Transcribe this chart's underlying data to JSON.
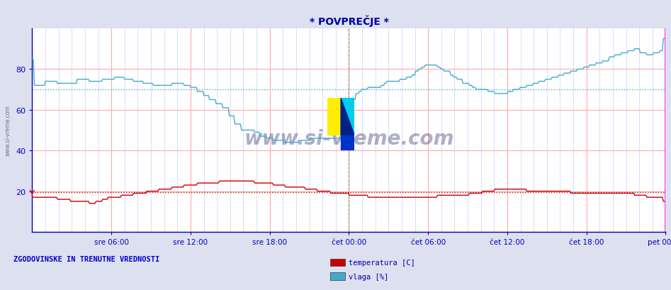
{
  "title": "* POVPREČJE *",
  "bg_color": "#dde0ee",
  "plot_bg_color": "#ffffff",
  "grid_color_major_h": "#ffaaaa",
  "grid_color_major_v": "#ffaaaa",
  "grid_color_minor": "#ccccff",
  "xlabel_color": "#0000bb",
  "ylabel_color": "#0000bb",
  "title_color": "#0000aa",
  "legend_label_left": "ZGODOVINSKE IN TRENUTNE VREDNOSTI",
  "legend_items": [
    "temperatura [C]",
    "vlaga [%]"
  ],
  "legend_colors": [
    "#cc0000",
    "#44aacc"
  ],
  "x_tick_labels": [
    "sre 06:00",
    "sre 12:00",
    "sre 18:00",
    "čet 00:00",
    "čet 06:00",
    "čet 12:00",
    "čet 18:00",
    "pet 00:00"
  ],
  "x_tick_positions": [
    0.125,
    0.25,
    0.375,
    0.5,
    0.625,
    0.75,
    0.875,
    1.0
  ],
  "ylim": [
    0,
    100
  ],
  "yticks": [
    20,
    40,
    60,
    80
  ],
  "vlaga_color": "#44aacc",
  "temp_color": "#cc0000",
  "vlaga_mean_line": 70,
  "temp_mean_line": 19.5,
  "dashed_line_x1": 0.5,
  "dashed_line_x2": 1.0,
  "magenta_line_x": 1.0,
  "watermark": "www.si-vreme.com",
  "n_points": 576,
  "side_label": "www.si-vreme.com"
}
